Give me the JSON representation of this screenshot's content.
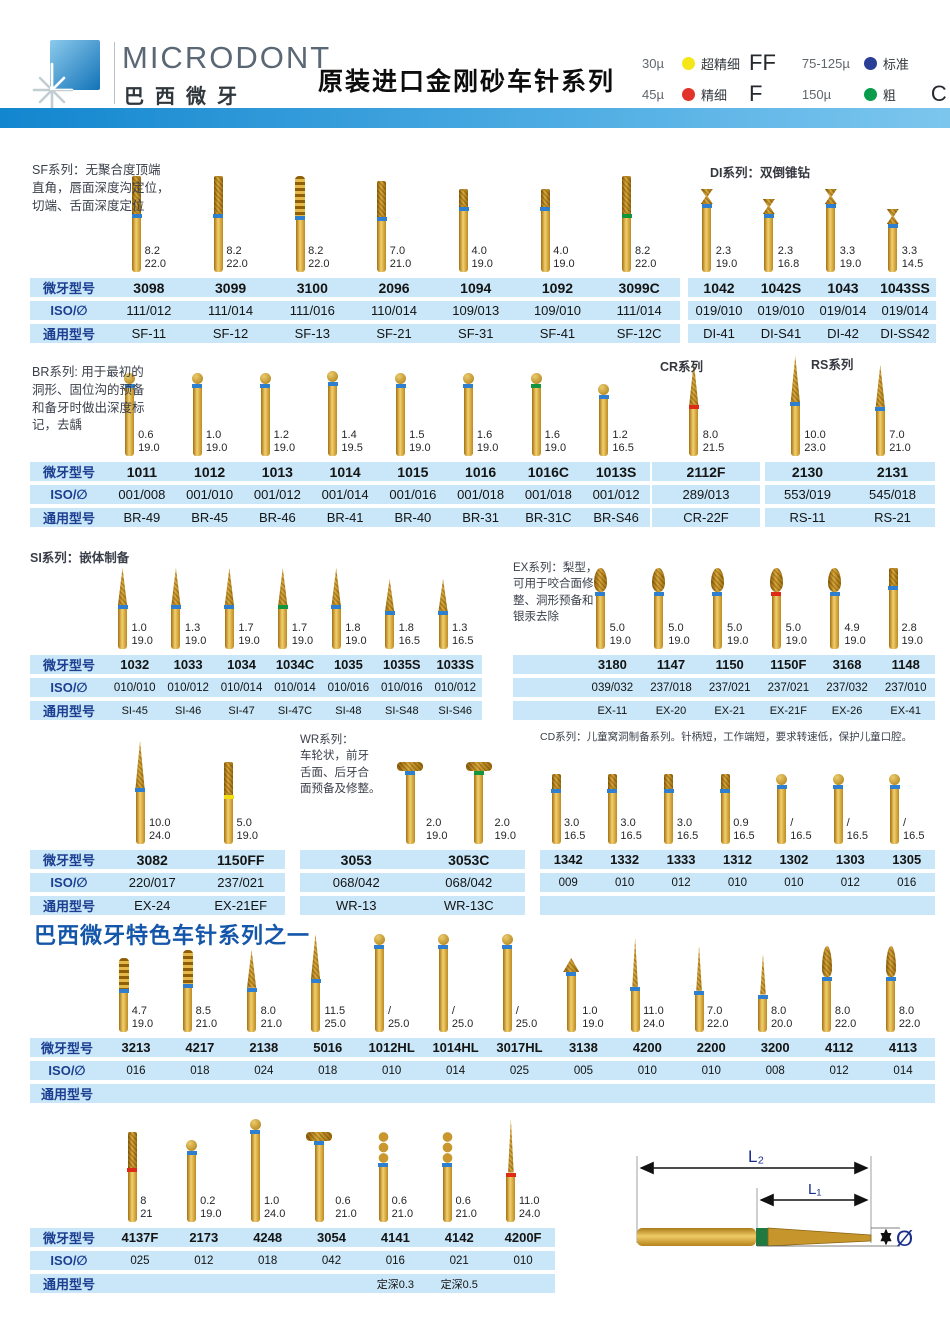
{
  "header": {
    "brand": "MICRODONT",
    "brand_cn": "巴西微牙",
    "title": "原装进口金刚砂车针系列",
    "legend": [
      {
        "size": "30µ",
        "color": "#f5e618",
        "label": "超精细",
        "grade": "FF"
      },
      {
        "size": "75-125µ",
        "color": "#2a3e96",
        "label": "标准",
        "grade": ""
      },
      {
        "size": "45µ",
        "color": "#e2332b",
        "label": "精细",
        "grade": "F"
      },
      {
        "size": "150µ",
        "color": "#089c4c",
        "label": "粗",
        "grade": "C"
      }
    ]
  },
  "row_labels": {
    "model": "微牙型号",
    "iso": "ISO/∅",
    "generic": "通用型号"
  },
  "sections": [
    {
      "id": "sf",
      "desc": "SF系列：无聚合度顶端\n直角，唇面深度沟定位，\n切端、舌面深度定位",
      "columns": [
        {
          "model": "3098",
          "iso": "111/012",
          "generic": "SF-11",
          "d": "8.2",
          "l": "22.0",
          "band": "blue",
          "shape": "cylinder"
        },
        {
          "model": "3099",
          "iso": "111/014",
          "generic": "SF-12",
          "d": "8.2",
          "l": "22.0",
          "band": "blue",
          "shape": "cylinder"
        },
        {
          "model": "3100",
          "iso": "111/016",
          "generic": "SF-13",
          "d": "8.2",
          "l": "22.0",
          "band": "blue",
          "shape": "spiral"
        },
        {
          "model": "2096",
          "iso": "110/014",
          "generic": "SF-21",
          "d": "7.0",
          "l": "21.0",
          "band": "blue",
          "shape": "cylinder"
        },
        {
          "model": "1094",
          "iso": "109/013",
          "generic": "SF-31",
          "d": "4.0",
          "l": "19.0",
          "band": "blue",
          "shape": "shortcyl"
        },
        {
          "model": "1092",
          "iso": "109/010",
          "generic": "SF-41",
          "d": "4.0",
          "l": "19.0",
          "band": "blue",
          "shape": "shortcyl"
        },
        {
          "model": "3099C",
          "iso": "111/014",
          "generic": "SF-12C",
          "d": "8.2",
          "l": "22.0",
          "band": "green",
          "shape": "cylinder"
        }
      ]
    },
    {
      "id": "di",
      "title": "DI系列：双倒锥钻",
      "columns": [
        {
          "model": "1042",
          "iso": "019/010",
          "generic": "DI-41",
          "d": "2.3",
          "l": "19.0",
          "band": "blue",
          "shape": "dblcone"
        },
        {
          "model": "1042S",
          "iso": "019/010",
          "generic": "DI-S41",
          "d": "2.3",
          "l": "16.8",
          "band": "blue",
          "shape": "dblcone"
        },
        {
          "model": "1043",
          "iso": "019/014",
          "generic": "DI-42",
          "d": "3.3",
          "l": "19.0",
          "band": "blue",
          "shape": "dblcone"
        },
        {
          "model": "1043SS",
          "iso": "019/014",
          "generic": "DI-SS42",
          "d": "3.3",
          "l": "14.5",
          "band": "blue",
          "shape": "dblcone"
        }
      ]
    },
    {
      "id": "br",
      "desc": "BR系列: 用于最初的\n洞形、固位沟的预备\n和备牙时做出深度标\n记，去龋",
      "columns": [
        {
          "model": "1011",
          "iso": "001/008",
          "generic": "BR-49",
          "d": "0.6",
          "l": "19.0",
          "band": "blue",
          "shape": "ball"
        },
        {
          "model": "1012",
          "iso": "001/010",
          "generic": "BR-45",
          "d": "1.0",
          "l": "19.0",
          "band": "blue",
          "shape": "ball"
        },
        {
          "model": "1013",
          "iso": "001/012",
          "generic": "BR-46",
          "d": "1.2",
          "l": "19.0",
          "band": "blue",
          "shape": "ball"
        },
        {
          "model": "1014",
          "iso": "001/014",
          "generic": "BR-41",
          "d": "1.4",
          "l": "19.5",
          "band": "blue",
          "shape": "ball"
        },
        {
          "model": "1015",
          "iso": "001/016",
          "generic": "BR-40",
          "d": "1.5",
          "l": "19.0",
          "band": "blue",
          "shape": "ball"
        },
        {
          "model": "1016",
          "iso": "001/018",
          "generic": "BR-31",
          "d": "1.6",
          "l": "19.0",
          "band": "blue",
          "shape": "ball"
        },
        {
          "model": "1016C",
          "iso": "001/018",
          "generic": "BR-31C",
          "d": "1.6",
          "l": "19.0",
          "band": "green",
          "shape": "ball"
        },
        {
          "model": "1013S",
          "iso": "001/012",
          "generic": "BR-S46",
          "d": "1.2",
          "l": "16.5",
          "band": "blue",
          "shape": "ball"
        }
      ]
    },
    {
      "id": "cr",
      "title": "CR系列",
      "columns": [
        {
          "model": "2112F",
          "iso": "289/013",
          "generic": "CR-22F",
          "d": "8.0",
          "l": "21.5",
          "band": "red",
          "shape": "taper"
        }
      ]
    },
    {
      "id": "rs",
      "title": "RS系列",
      "columns": [
        {
          "model": "2130",
          "iso": "553/019",
          "generic": "RS-11",
          "d": "10.0",
          "l": "23.0",
          "band": "blue",
          "shape": "taper"
        },
        {
          "model": "2131",
          "iso": "545/018",
          "generic": "RS-21",
          "d": "7.0",
          "l": "21.0",
          "band": "blue",
          "shape": "taper"
        }
      ]
    },
    {
      "id": "si",
      "desc": "SI系列：嵌体制备",
      "columns": [
        {
          "model": "1032",
          "iso": "010/010",
          "generic": "SI-45",
          "d": "1.0",
          "l": "19.0",
          "band": "blue",
          "shape": "taper"
        },
        {
          "model": "1033",
          "iso": "010/012",
          "generic": "SI-46",
          "d": "1.3",
          "l": "19.0",
          "band": "blue",
          "shape": "taper"
        },
        {
          "model": "1034",
          "iso": "010/014",
          "generic": "SI-47",
          "d": "1.7",
          "l": "19.0",
          "band": "blue",
          "shape": "taper"
        },
        {
          "model": "1034C",
          "iso": "010/014",
          "generic": "SI-47C",
          "d": "1.7",
          "l": "19.0",
          "band": "green",
          "shape": "taper"
        },
        {
          "model": "1035",
          "iso": "010/016",
          "generic": "SI-48",
          "d": "1.8",
          "l": "19.0",
          "band": "blue",
          "shape": "taper"
        },
        {
          "model": "1035S",
          "iso": "010/016",
          "generic": "SI-S48",
          "d": "1.8",
          "l": "16.5",
          "band": "blue",
          "shape": "taper"
        },
        {
          "model": "1033S",
          "iso": "010/012",
          "generic": "SI-S46",
          "d": "1.3",
          "l": "16.5",
          "band": "blue",
          "shape": "taper"
        }
      ]
    },
    {
      "id": "ex",
      "desc": "EX系列：梨型，\n可用于咬合面修\n整、洞形预备和\n银汞去除",
      "columns": [
        {
          "model": "3180",
          "iso": "039/032",
          "generic": "EX-11",
          "d": "5.0",
          "l": "19.0",
          "band": "blue",
          "shape": "pear"
        },
        {
          "model": "1147",
          "iso": "237/018",
          "generic": "EX-20",
          "d": "5.0",
          "l": "19.0",
          "band": "blue",
          "shape": "pear"
        },
        {
          "model": "1150",
          "iso": "237/021",
          "generic": "EX-21",
          "d": "5.0",
          "l": "19.0",
          "band": "blue",
          "shape": "pear"
        },
        {
          "model": "1150F",
          "iso": "237/021",
          "generic": "EX-21F",
          "d": "5.0",
          "l": "19.0",
          "band": "red",
          "shape": "pear"
        },
        {
          "model": "3168",
          "iso": "237/032",
          "generic": "EX-26",
          "d": "4.9",
          "l": "19.0",
          "band": "blue",
          "shape": "pear"
        },
        {
          "model": "1148",
          "iso": "237/010",
          "generic": "EX-41",
          "d": "2.8",
          "l": "19.0",
          "band": "blue",
          "shape": "shortcyl"
        }
      ]
    },
    {
      "id": "ex2",
      "columns": [
        {
          "model": "3082",
          "iso": "220/017",
          "generic": "EX-24",
          "d": "10.0",
          "l": "24.0",
          "band": "blue",
          "shape": "taper"
        },
        {
          "model": "1150FF",
          "iso": "237/021",
          "generic": "EX-21EF",
          "d": "5.0",
          "l": "19.0",
          "band": "yellow",
          "shape": "cylinder"
        }
      ]
    },
    {
      "id": "wr",
      "desc": "WR系列：\n车轮状，前牙\n舌面、后牙合\n面预备及修整。",
      "columns": [
        {
          "model": "3053",
          "iso": "068/042",
          "generic": "WR-13",
          "d": "2.0",
          "l": "19.0",
          "band": "blue",
          "shape": "wheel"
        },
        {
          "model": "3053C",
          "iso": "068/042",
          "generic": "WR-13C",
          "d": "2.0",
          "l": "19.0",
          "band": "green",
          "shape": "wheel"
        }
      ]
    },
    {
      "id": "cd",
      "desc": "CD系列：儿童窝洞制备系列。针柄短，工作端短，要求转速低，保护儿童口腔。",
      "columns": [
        {
          "model": "1342",
          "iso": "009",
          "generic": "",
          "d": "3.0",
          "l": "16.5",
          "band": "blue",
          "shape": "shortcyl"
        },
        {
          "model": "1332",
          "iso": "010",
          "generic": "",
          "d": "3.0",
          "l": "16.5",
          "band": "blue",
          "shape": "shortcyl"
        },
        {
          "model": "1333",
          "iso": "012",
          "generic": "",
          "d": "3.0",
          "l": "16.5",
          "band": "blue",
          "shape": "shortcyl"
        },
        {
          "model": "1312",
          "iso": "010",
          "generic": "",
          "d": "0.9",
          "l": "16.5",
          "band": "blue",
          "shape": "shortcyl"
        },
        {
          "model": "1302",
          "iso": "010",
          "generic": "",
          "d": "/",
          "l": "16.5",
          "band": "blue",
          "shape": "ball"
        },
        {
          "model": "1303",
          "iso": "012",
          "generic": "",
          "d": "/",
          "l": "16.5",
          "band": "blue",
          "shape": "ball"
        },
        {
          "model": "1305",
          "iso": "016",
          "generic": "",
          "d": "/",
          "l": "16.5",
          "band": "blue",
          "shape": "ball"
        }
      ]
    },
    {
      "id": "sp",
      "title": "巴西微牙特色车针系列之一",
      "columns": [
        {
          "model": "3213",
          "iso": "016",
          "generic": "",
          "d": "4.7",
          "l": "19.0",
          "band": "blue",
          "shape": "spiral"
        },
        {
          "model": "4217",
          "iso": "018",
          "generic": "",
          "d": "8.5",
          "l": "21.0",
          "band": "blue",
          "shape": "spiral"
        },
        {
          "model": "2138",
          "iso": "024",
          "generic": "",
          "d": "8.0",
          "l": "21.0",
          "band": "blue",
          "shape": "taper"
        },
        {
          "model": "5016",
          "iso": "018",
          "generic": "",
          "d": "11.5",
          "l": "25.0",
          "band": "blue",
          "shape": "taper"
        },
        {
          "model": "1012HL",
          "iso": "010",
          "generic": "",
          "d": "/",
          "l": "25.0",
          "band": "blue",
          "shape": "ball"
        },
        {
          "model": "1014HL",
          "iso": "014",
          "generic": "",
          "d": "/",
          "l": "25.0",
          "band": "blue",
          "shape": "ball"
        },
        {
          "model": "3017HL",
          "iso": "025",
          "generic": "",
          "d": "/",
          "l": "25.0",
          "band": "blue",
          "shape": "ball"
        },
        {
          "model": "3138",
          "iso": "005",
          "generic": "",
          "d": "1.0",
          "l": "19.0",
          "band": "blue",
          "shape": "arrow"
        },
        {
          "model": "4200",
          "iso": "010",
          "generic": "",
          "d": "11.0",
          "l": "24.0",
          "band": "blue",
          "shape": "needle"
        },
        {
          "model": "2200",
          "iso": "010",
          "generic": "",
          "d": "7.0",
          "l": "22.0",
          "band": "blue",
          "shape": "needle"
        },
        {
          "model": "3200",
          "iso": "008",
          "generic": "",
          "d": "8.0",
          "l": "20.0",
          "band": "blue",
          "shape": "needle"
        },
        {
          "model": "4112",
          "iso": "012",
          "generic": "",
          "d": "8.0",
          "l": "22.0",
          "band": "blue",
          "shape": "flame"
        },
        {
          "model": "4113",
          "iso": "014",
          "generic": "",
          "d": "8.0",
          "l": "22.0",
          "band": "blue",
          "shape": "flame"
        }
      ]
    },
    {
      "id": "last",
      "columns": [
        {
          "model": "4137F",
          "iso": "025",
          "generic": "",
          "d": "8",
          "l": "21",
          "band": "red",
          "shape": "cylinder"
        },
        {
          "model": "2173",
          "iso": "012",
          "generic": "",
          "d": "0.2",
          "l": "19.0",
          "band": "blue",
          "shape": "ball"
        },
        {
          "model": "4248",
          "iso": "018",
          "generic": "",
          "d": "1.0",
          "l": "24.0",
          "band": "blue",
          "shape": "ball"
        },
        {
          "model": "3054",
          "iso": "042",
          "generic": "",
          "d": "0.6",
          "l": "21.0",
          "band": "blue",
          "shape": "wheel"
        },
        {
          "model": "4141",
          "iso": "016",
          "generic": "定深0.3",
          "d": "0.6",
          "l": "21.0",
          "band": "blue",
          "shape": "stack3"
        },
        {
          "model": "4142",
          "iso": "021",
          "generic": "定深0.5",
          "d": "0.6",
          "l": "21.0",
          "band": "blue",
          "shape": "stack3"
        },
        {
          "model": "4200F",
          "iso": "010",
          "generic": "",
          "d": "11.0",
          "l": "24.0",
          "band": "red",
          "shape": "needle"
        }
      ]
    }
  ],
  "diagram": {
    "l2": "L₂",
    "l1": "L₁",
    "dia": "Ø"
  }
}
